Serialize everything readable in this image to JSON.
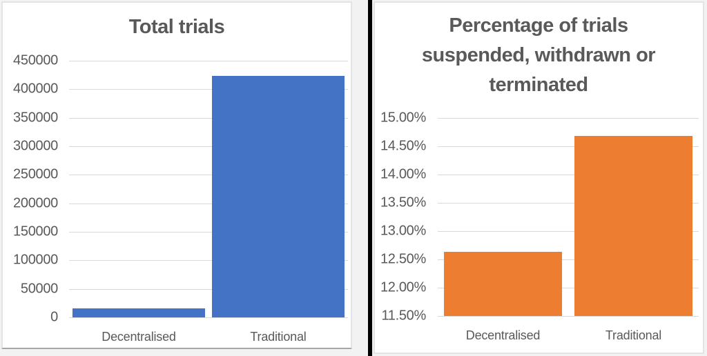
{
  "figure": {
    "divider_color": "#000000",
    "panel_background": "#ffffff",
    "text_color": "#595959",
    "gridline_color": "#d9d9d9"
  },
  "chart_data": [
    {
      "type": "bar",
      "title": "Total trials",
      "categories": [
        "Decentralised",
        "Traditional"
      ],
      "values": [
        16000,
        423000
      ],
      "ylim": [
        0,
        450000
      ],
      "ytick_step": 50000,
      "ytick_labels": [
        "450000",
        "400000",
        "350000",
        "300000",
        "250000",
        "200000",
        "150000",
        "100000",
        "50000",
        "0"
      ],
      "xlabel": "",
      "ylabel": "",
      "grid": true,
      "legend": "none",
      "bar_color": "#4472C4",
      "bar_width_frac": 0.95
    },
    {
      "type": "bar",
      "title": "Percentage of trials suspended, withdrawn or terminated",
      "categories": [
        "Decentralised",
        "Traditional"
      ],
      "values": [
        12.63,
        14.68
      ],
      "ylim": [
        11.5,
        15.0
      ],
      "ytick_step": 0.5,
      "ytick_labels": [
        "15.00%",
        "14.50%",
        "14.00%",
        "13.50%",
        "13.00%",
        "12.50%",
        "12.00%",
        "11.50%"
      ],
      "xlabel": "",
      "ylabel": "",
      "grid": true,
      "legend": "none",
      "bar_color": "#ED7D31",
      "bar_width_frac": 0.91
    }
  ]
}
